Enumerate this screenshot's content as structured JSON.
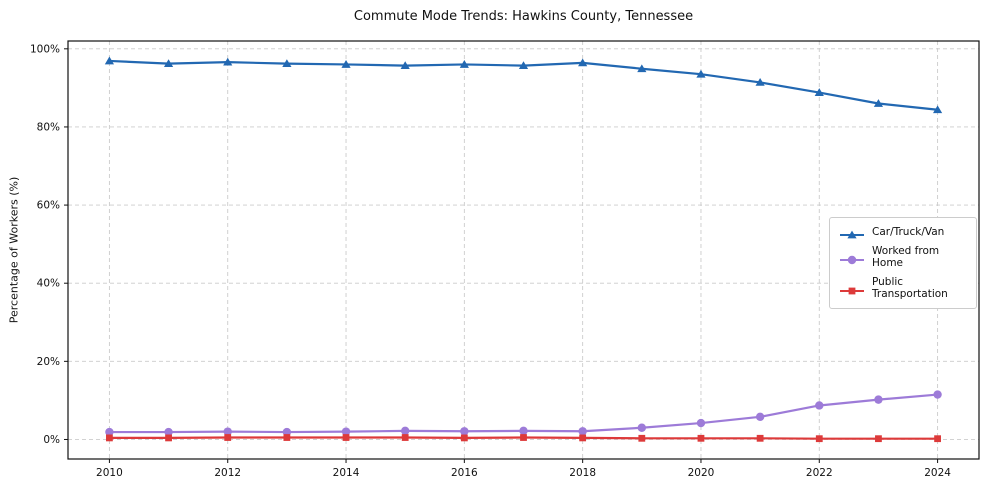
{
  "chart_data": {
    "type": "line",
    "title": "Commute Mode Trends: Hawkins County, Tennessee",
    "xlabel": "",
    "ylabel": "Percentage of Workers (%)",
    "x": [
      2010,
      2011,
      2012,
      2013,
      2014,
      2015,
      2016,
      2017,
      2018,
      2019,
      2020,
      2021,
      2022,
      2023,
      2024
    ],
    "x_tick_values": [
      2010,
      2012,
      2014,
      2016,
      2018,
      2020,
      2022,
      2024
    ],
    "x_ticks": [
      "2010",
      "2012",
      "2014",
      "2016",
      "2018",
      "2020",
      "2022",
      "2024"
    ],
    "y_tick_values": [
      0,
      20,
      40,
      60,
      80,
      100
    ],
    "y_ticks": [
      "0%",
      "20%",
      "40%",
      "60%",
      "80%",
      "100%"
    ],
    "xlim": [
      2009.3,
      2024.7
    ],
    "ylim": [
      -5,
      102
    ],
    "grid": "dashed",
    "legend_position": "center-right",
    "series": [
      {
        "name": "Car/Truck/Van",
        "marker": "triangle",
        "color": "#2268b2",
        "values": [
          96.9,
          96.2,
          96.6,
          96.2,
          96.0,
          95.7,
          96.0,
          95.7,
          96.4,
          94.9,
          93.5,
          91.4,
          88.8,
          86.0,
          84.4
        ]
      },
      {
        "name": "Worked from Home",
        "marker": "circle",
        "color": "#9d7bd8",
        "values": [
          1.9,
          1.9,
          2.0,
          1.9,
          2.0,
          2.2,
          2.1,
          2.2,
          2.1,
          3.0,
          4.2,
          5.8,
          8.7,
          10.2,
          11.5
        ]
      },
      {
        "name": "Public Transportation",
        "marker": "square",
        "color": "#dd3a3a",
        "values": [
          0.4,
          0.4,
          0.5,
          0.5,
          0.5,
          0.5,
          0.4,
          0.5,
          0.4,
          0.3,
          0.3,
          0.3,
          0.2,
          0.2,
          0.2
        ]
      }
    ]
  }
}
